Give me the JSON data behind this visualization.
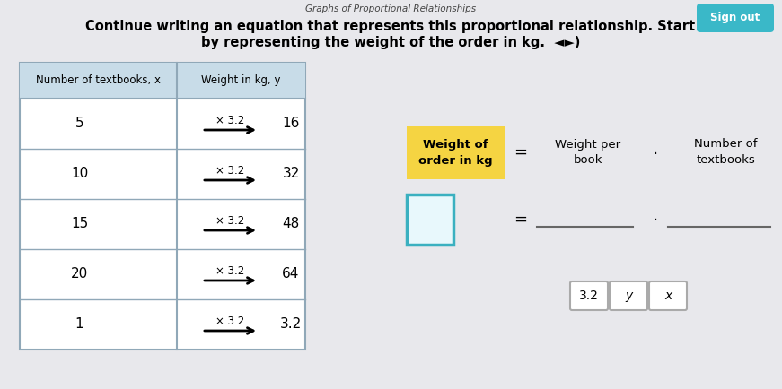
{
  "bg_color": "#c8c8d0",
  "title_line1": "Continue writing an equation that represents this proportional relationship. Start",
  "title_line2": "by representing the weight of the order in kg.  ◄►)",
  "header_top": "Graphs of Proportional Relationships",
  "sign_out": "Sign out",
  "table_header": [
    "Number of textbooks, x",
    "Weight in kg, y"
  ],
  "table_rows": [
    [
      "5",
      "× 3.2",
      "16"
    ],
    [
      "10",
      "× 3.2",
      "32"
    ],
    [
      "15",
      "× 3.2",
      "48"
    ],
    [
      "20",
      "× 3.2",
      "64"
    ],
    [
      "1",
      "× 3.2",
      "3.2"
    ]
  ],
  "eq_label1": "Weight of\norder in kg",
  "eq_label2": "Weight per\nbook",
  "eq_label3": "Number of\ntextbooks",
  "eq_label1_bg": "#f5d442",
  "eq_box_color": "#3ab0c0",
  "hint_boxes": [
    "3.2",
    "y",
    "x"
  ],
  "table_border": "#90a8b8",
  "table_header_bg": "#c8dce8",
  "sign_btn_color": "#3ab8c8",
  "white": "#ffffff",
  "line_color": "#666666"
}
